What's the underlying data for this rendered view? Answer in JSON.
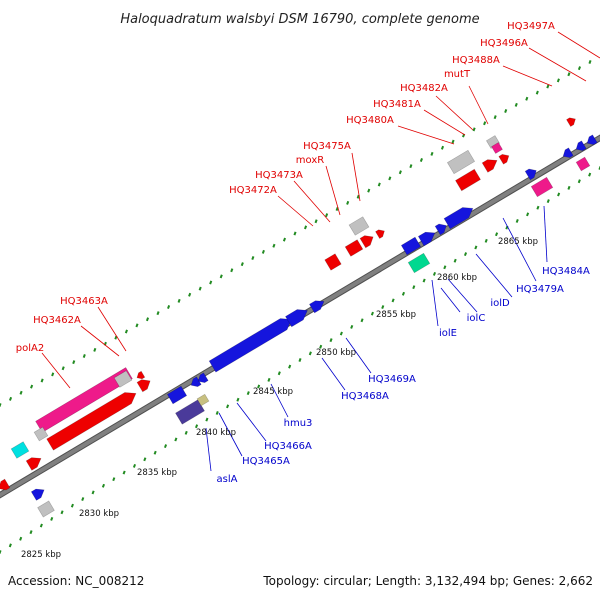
{
  "title": "Haloquadratum walsbyi DSM 16790, complete genome",
  "footer": {
    "accession": "Accession: NC_008212",
    "summary": "Topology: circular; Length: 3,132,494 bp; Genes: 2,662"
  },
  "colors": {
    "upper_label": "#e00000",
    "lower_label": "#0000cc",
    "backbone": "#808080",
    "tick": "#228b22",
    "blue_gene": "#1515dd",
    "red_gene": "#ee0000",
    "pink_gene": "#ee1a8a",
    "gray_gene": "#c0c0c0",
    "cyan_gene": "#00e0e0",
    "green_gene": "#00d890",
    "navy_gene": "#4a3a9a",
    "khaki_gene": "#c8c080"
  },
  "kbp_labels": [
    "2825 kbp",
    "2830 kbp",
    "2835 kbp",
    "2840 kbp",
    "2845 kbp",
    "2850 kbp",
    "2855 kbp",
    "2860 kbp",
    "2865 kbp"
  ],
  "upper_labels": [
    "HQ3497A",
    "HQ3496A",
    "HQ3488A",
    "mutT",
    "HQ3482A",
    "HQ3481A",
    "HQ3480A",
    "HQ3475A",
    "moxR",
    "HQ3473A",
    "HQ3472A",
    "HQ3463A",
    "HQ3462A",
    "polA2"
  ],
  "lower_labels": [
    "HQ3484A",
    "HQ3479A",
    "iolD",
    "iolC",
    "iolE",
    "HQ3469A",
    "HQ3468A",
    "hmu3",
    "HQ3466A",
    "HQ3465A",
    "aslA"
  ]
}
